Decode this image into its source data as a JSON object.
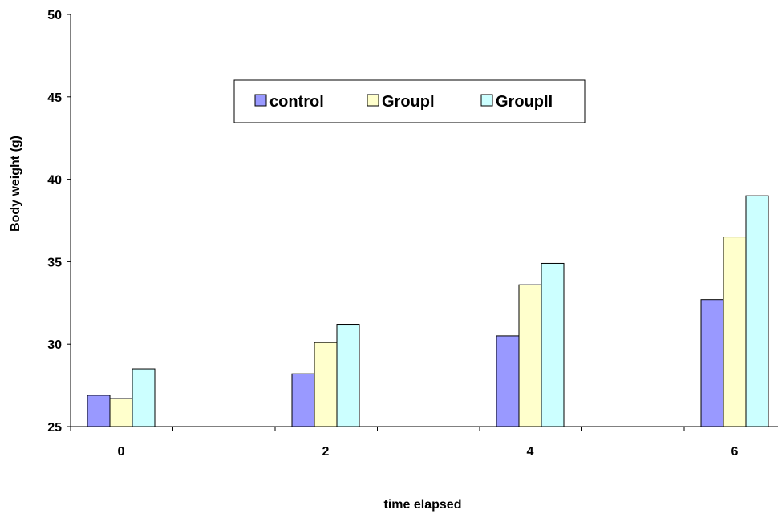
{
  "chart_data": {
    "type": "bar",
    "title": "",
    "xlabel": "time elapsed",
    "ylabel": "Body weight (g)",
    "categories": [
      "0",
      "2",
      "4",
      "6"
    ],
    "ylim": [
      25,
      50
    ],
    "yticks": [
      25,
      30,
      35,
      40,
      45,
      50
    ],
    "grid": false,
    "legend_position": "top-center",
    "series": [
      {
        "name": "control",
        "values": [
          26.9,
          28.2,
          30.5,
          32.7
        ],
        "color": "#9999ff"
      },
      {
        "name": "GroupI",
        "values": [
          26.7,
          30.1,
          33.6,
          36.5
        ],
        "color": "#ffffcc"
      },
      {
        "name": "GroupII",
        "values": [
          28.5,
          31.2,
          34.9,
          39.0
        ],
        "color": "#ccffff"
      }
    ]
  }
}
